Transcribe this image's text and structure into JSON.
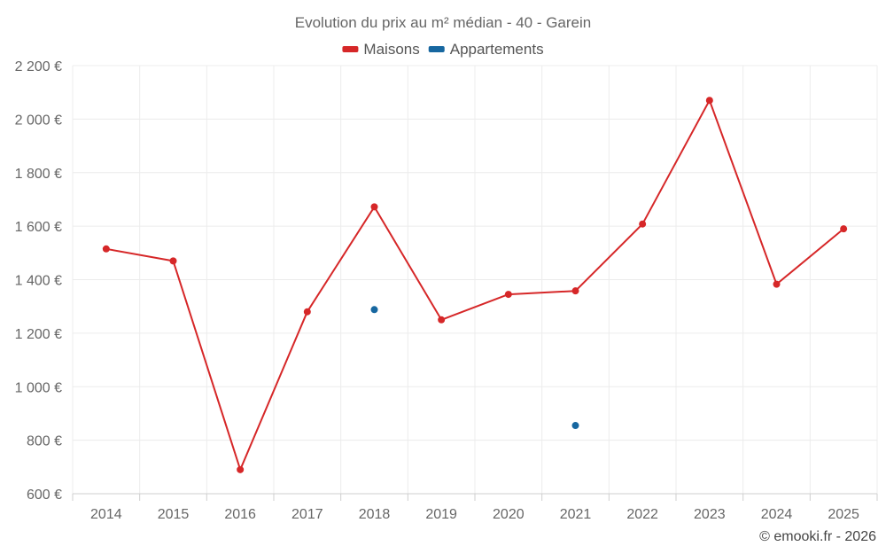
{
  "chart_data": {
    "type": "line",
    "title": "Evolution du prix au m² médian - 40 - Garein",
    "categories": [
      "2014",
      "2015",
      "2016",
      "2017",
      "2018",
      "2019",
      "2020",
      "2021",
      "2022",
      "2023",
      "2024",
      "2025"
    ],
    "y_ticks": [
      600,
      800,
      1000,
      1200,
      1400,
      1600,
      1800,
      2000,
      2200
    ],
    "y_tick_labels": [
      "600 €",
      "800 €",
      "1 000 €",
      "1 200 €",
      "1 400 €",
      "1 600 €",
      "1 800 €",
      "2 000 €",
      "2 200 €"
    ],
    "ylim": [
      600,
      2200
    ],
    "xlabel": "",
    "ylabel": "",
    "grid": true,
    "legend_position": "top-center",
    "series": [
      {
        "name": "Maisons",
        "color": "#d62728",
        "line": true,
        "values": [
          1515,
          1470,
          690,
          1280,
          1672,
          1250,
          1345,
          1358,
          1608,
          2070,
          1383,
          1590
        ]
      },
      {
        "name": "Appartements",
        "color": "#1767a0",
        "line": false,
        "values": [
          null,
          null,
          null,
          null,
          1288,
          null,
          null,
          855,
          null,
          null,
          null,
          null
        ]
      }
    ]
  },
  "credit": "© emooki.fr - 2026"
}
